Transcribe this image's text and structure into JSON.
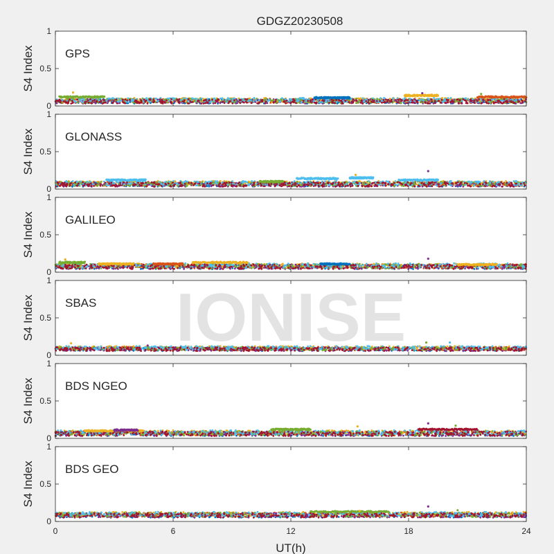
{
  "chart_data": {
    "type": "scatter",
    "title": "GDGZ20230508",
    "xlabel": "UT(h)",
    "ylabel": "S4 Index",
    "xlim": [
      0,
      24
    ],
    "ylim": [
      0,
      1
    ],
    "xticks": [
      "0",
      "6",
      "12",
      "18",
      "24"
    ],
    "yticks": [
      "0",
      "0.5",
      "1"
    ],
    "watermark": "IONISE",
    "series_colors": [
      "#0072BD",
      "#D95319",
      "#EDB120",
      "#7E2F8E",
      "#77AC30",
      "#4DBEEE",
      "#A2142F"
    ],
    "panels": [
      {
        "label": "GPS",
        "baseline": 0.07,
        "spread": 0.03,
        "arcs": [
          {
            "x": [
              0.2,
              2.5
            ],
            "y": 0.12,
            "color": "#77AC30"
          },
          {
            "x": [
              13.2,
              15.0
            ],
            "y": 0.11,
            "color": "#0072BD"
          },
          {
            "x": [
              17.8,
              19.5
            ],
            "y": 0.14,
            "color": "#EDB120"
          },
          {
            "x": [
              21.5,
              24.0
            ],
            "y": 0.12,
            "color": "#D95319"
          }
        ],
        "spikes": [
          {
            "x": 0.9,
            "y": 0.18
          },
          {
            "x": 18.7,
            "y": 0.17
          },
          {
            "x": 21.7,
            "y": 0.16
          }
        ]
      },
      {
        "label": "GLONASS",
        "baseline": 0.07,
        "spread": 0.03,
        "arcs": [
          {
            "x": [
              2.6,
              4.6
            ],
            "y": 0.12,
            "color": "#4DBEEE"
          },
          {
            "x": [
              10.4,
              11.6
            ],
            "y": 0.1,
            "color": "#77AC30"
          },
          {
            "x": [
              12.3,
              14.4
            ],
            "y": 0.14,
            "color": "#4DBEEE"
          },
          {
            "x": [
              15.0,
              16.2
            ],
            "y": 0.15,
            "color": "#4DBEEE"
          },
          {
            "x": [
              17.5,
              19.5
            ],
            "y": 0.12,
            "color": "#4DBEEE"
          }
        ],
        "spikes": [
          {
            "x": 15.3,
            "y": 0.19
          },
          {
            "x": 19.0,
            "y": 0.24
          }
        ]
      },
      {
        "label": "GALILEO",
        "baseline": 0.08,
        "spread": 0.03,
        "arcs": [
          {
            "x": [
              0.2,
              1.5
            ],
            "y": 0.13,
            "color": "#77AC30"
          },
          {
            "x": [
              2.2,
              4.0
            ],
            "y": 0.11,
            "color": "#EDB120"
          },
          {
            "x": [
              7.0,
              9.8
            ],
            "y": 0.13,
            "color": "#EDB120"
          },
          {
            "x": [
              5.0,
              6.5
            ],
            "y": 0.11,
            "color": "#D95319"
          },
          {
            "x": [
              13.5,
              15.0
            ],
            "y": 0.11,
            "color": "#0072BD"
          },
          {
            "x": [
              20.5,
              22.5
            ],
            "y": 0.1,
            "color": "#EDB120"
          }
        ],
        "spikes": [
          {
            "x": 0.5,
            "y": 0.17
          },
          {
            "x": 19.0,
            "y": 0.18
          }
        ]
      },
      {
        "label": "SBAS",
        "baseline": 0.09,
        "spread": 0.025,
        "arcs": [],
        "spikes": [
          {
            "x": 0.8,
            "y": 0.16
          },
          {
            "x": 4.7,
            "y": 0.13
          },
          {
            "x": 18.9,
            "y": 0.17
          },
          {
            "x": 20.1,
            "y": 0.17
          }
        ]
      },
      {
        "label": "BDS NGEO",
        "baseline": 0.07,
        "spread": 0.03,
        "arcs": [
          {
            "x": [
              1.5,
              4.5
            ],
            "y": 0.1,
            "color": "#EDB120"
          },
          {
            "x": [
              3.0,
              4.2
            ],
            "y": 0.11,
            "color": "#7E2F8E"
          },
          {
            "x": [
              11.0,
              13.0
            ],
            "y": 0.12,
            "color": "#77AC30"
          },
          {
            "x": [
              18.5,
              21.5
            ],
            "y": 0.12,
            "color": "#A2142F"
          }
        ],
        "spikes": [
          {
            "x": 15.4,
            "y": 0.16
          },
          {
            "x": 19.0,
            "y": 0.2
          },
          {
            "x": 20.4,
            "y": 0.17
          }
        ]
      },
      {
        "label": "BDS GEO",
        "baseline": 0.09,
        "spread": 0.03,
        "arcs": [
          {
            "x": [
              13.0,
              17.0
            ],
            "y": 0.13,
            "color": "#77AC30"
          }
        ],
        "spikes": [
          {
            "x": 15.5,
            "y": 0.14
          },
          {
            "x": 19.0,
            "y": 0.2
          },
          {
            "x": 20.5,
            "y": 0.15
          }
        ]
      }
    ]
  }
}
